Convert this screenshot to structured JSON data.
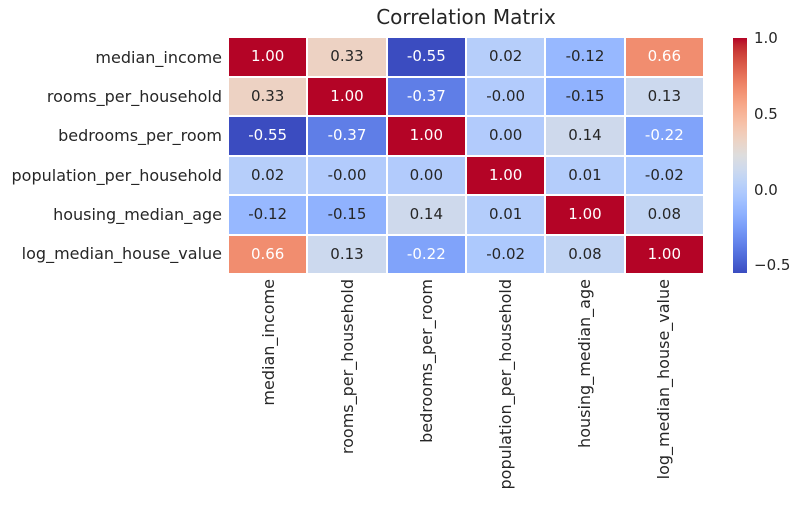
{
  "title": "Correlation Matrix",
  "chart_data": {
    "type": "heatmap",
    "title": "Correlation Matrix",
    "labels": [
      "median_income",
      "rooms_per_household",
      "bedrooms_per_room",
      "population_per_household",
      "housing_median_age",
      "log_median_house_value"
    ],
    "values": [
      [
        1.0,
        0.33,
        -0.55,
        0.02,
        -0.12,
        0.66
      ],
      [
        0.33,
        1.0,
        -0.37,
        0.0,
        -0.15,
        0.13
      ],
      [
        -0.55,
        -0.37,
        1.0,
        0.0,
        0.14,
        -0.22
      ],
      [
        0.02,
        0.0,
        0.0,
        1.0,
        0.01,
        -0.02
      ],
      [
        -0.12,
        -0.15,
        0.14,
        0.01,
        1.0,
        0.08
      ],
      [
        0.66,
        0.13,
        -0.22,
        -0.02,
        0.08,
        1.0
      ]
    ],
    "display": [
      [
        "1.00",
        "0.33",
        "-0.55",
        "0.02",
        "-0.12",
        "0.66"
      ],
      [
        "0.33",
        "1.00",
        "-0.37",
        "-0.00",
        "-0.15",
        "0.13"
      ],
      [
        "-0.55",
        "-0.37",
        "1.00",
        "0.00",
        "0.14",
        "-0.22"
      ],
      [
        "0.02",
        "-0.00",
        "0.00",
        "1.00",
        "0.01",
        "-0.02"
      ],
      [
        "-0.12",
        "-0.15",
        "0.14",
        "0.01",
        "1.00",
        "0.08"
      ],
      [
        "0.66",
        "0.13",
        "-0.22",
        "-0.02",
        "0.08",
        "1.00"
      ]
    ],
    "vmin": -0.55,
    "vmax": 1.0,
    "grid": false,
    "legend_position": "right-colorbar",
    "colormap": {
      "name": "coolwarm",
      "stops": [
        "#3b4cc0",
        "#445acc",
        "#4d68d7",
        "#5775e1",
        "#6282ea",
        "#6c8ef1",
        "#779af7",
        "#82a5fb",
        "#8db0fe",
        "#98b9ff",
        "#a3c2ff",
        "#aec9fd",
        "#b8d0f9",
        "#c2d5f4",
        "#ccd9ee",
        "#d5dbe6",
        "#dddddd",
        "#e5d8d1",
        "#ecd3c5",
        "#f1ccb9",
        "#f5c4ad",
        "#f7bba0",
        "#f7b194",
        "#f7a687",
        "#f49a7b",
        "#f18d6f",
        "#ec7f63",
        "#e57058",
        "#de604d",
        "#d55042",
        "#cb3e38",
        "#c0282f",
        "#b40426"
      ]
    },
    "colorbar_ticks": [
      {
        "value": 1.0,
        "label": "1.0"
      },
      {
        "value": 0.5,
        "label": "0.5"
      },
      {
        "value": 0.0,
        "label": "0.0"
      },
      {
        "value": -0.5,
        "label": "−0.5"
      }
    ],
    "annotation_text_colors": {
      "dark": "#262626",
      "light": "#ffffff"
    },
    "background": "#ffffff"
  }
}
